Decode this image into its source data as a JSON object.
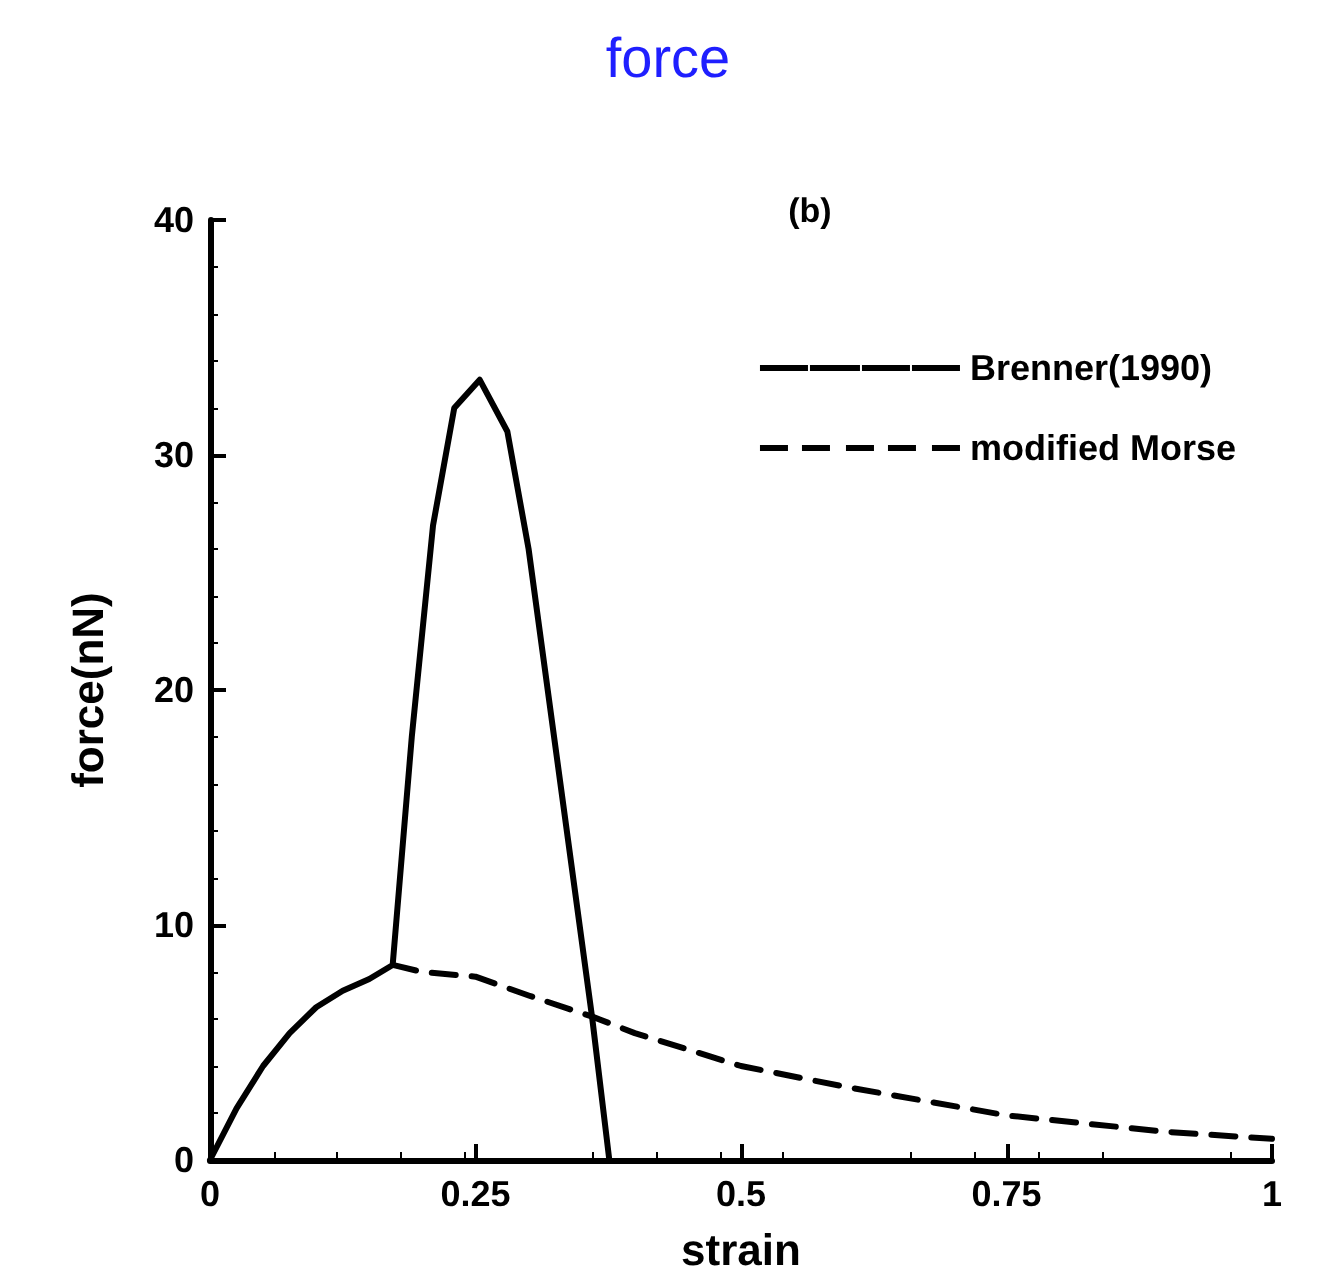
{
  "chart_data": {
    "type": "line",
    "title": "force",
    "subtitle": "(b)",
    "xlabel": "strain",
    "ylabel": "force(nN)",
    "xlim": [
      0,
      1
    ],
    "xticks": [
      0,
      0.25,
      0.5,
      0.75,
      1
    ],
    "ylim": [
      0,
      40
    ],
    "yticks": [
      0,
      10,
      20,
      30,
      40
    ],
    "grid": false,
    "legend": "top right",
    "marker": "none",
    "series": [
      {
        "name": "Brenner(1990)",
        "color": "#000000",
        "line_style": "solid",
        "x": [
          0,
          0.025,
          0.05,
          0.075,
          0.1,
          0.125,
          0.15,
          0.172,
          0.19,
          0.21,
          0.23,
          0.254,
          0.28,
          0.3,
          0.33,
          0.36,
          0.376
        ],
        "values": [
          0,
          2.2,
          4.0,
          5.4,
          6.5,
          7.2,
          7.7,
          8.3,
          18,
          27,
          32,
          33.2,
          31,
          26,
          16,
          6,
          0
        ]
      },
      {
        "name": "modified Morse",
        "color": "#000000",
        "line_style": "dashed",
        "x": [
          0.172,
          0.2,
          0.25,
          0.3,
          0.36,
          0.4,
          0.5,
          0.6,
          0.75,
          0.9,
          1
        ],
        "values": [
          8.3,
          8.0,
          7.8,
          7.0,
          6.1,
          5.4,
          4.0,
          3.1,
          1.9,
          1.2,
          0.9
        ]
      }
    ]
  }
}
